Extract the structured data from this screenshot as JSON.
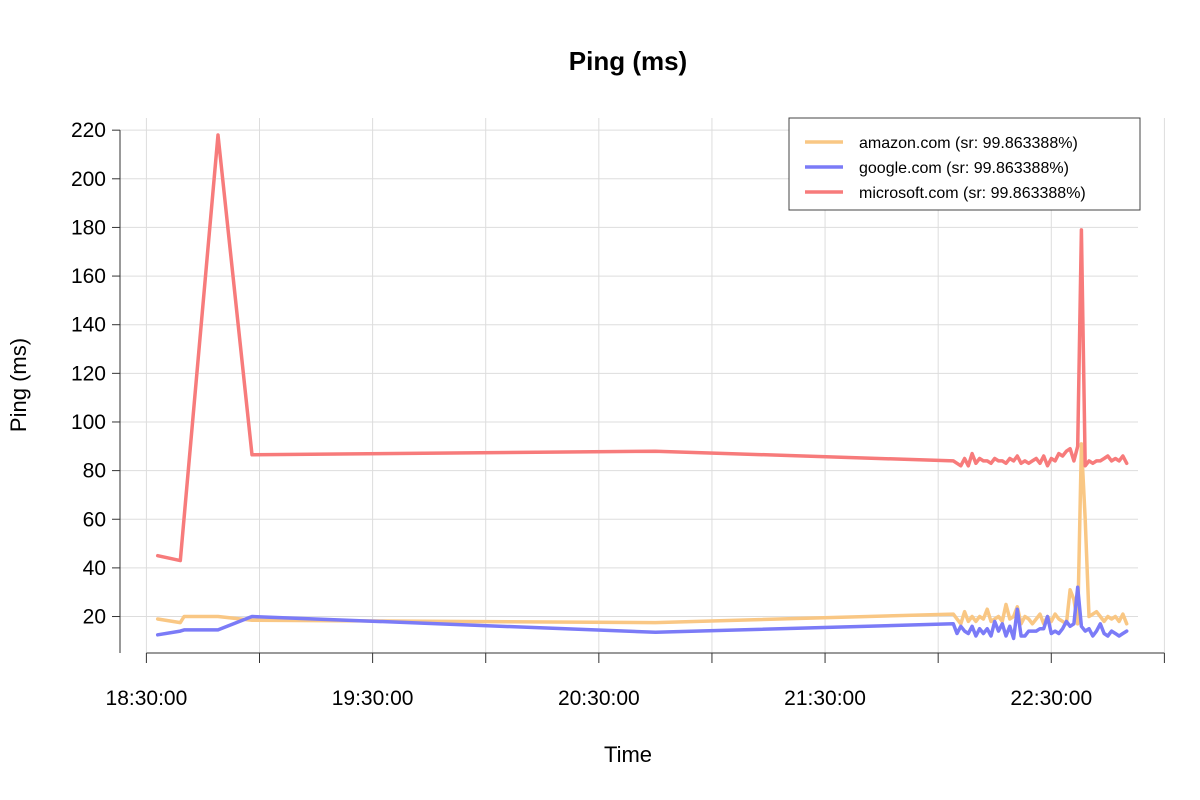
{
  "chart_data": {
    "type": "line",
    "title": "Ping (ms)",
    "xlabel": "Time",
    "ylabel": "Ping (ms)",
    "x_unit": "time of day",
    "xlim": [
      "18:23:00",
      "22:53:00"
    ],
    "ylim": [
      5,
      225
    ],
    "x_ticks": [
      "18:30:00",
      "19:00:00",
      "19:30:00",
      "20:00:00",
      "20:30:00",
      "21:00:00",
      "21:30:00",
      "22:00:00",
      "22:30:00",
      "23:00:00"
    ],
    "x_tick_labels": [
      "18:30:00",
      "",
      "19:30:00",
      "",
      "20:30:00",
      "",
      "21:30:00",
      "",
      "22:30:00",
      ""
    ],
    "y_ticks": [
      20,
      40,
      60,
      80,
      100,
      120,
      140,
      160,
      180,
      200,
      220
    ],
    "grid": true,
    "legend_position": "top-right",
    "series": [
      {
        "name": "amazon.com (sr: 99.863388%)",
        "color": "#f9c784",
        "x": [
          "18:33:00",
          "18:39:00",
          "18:40:00",
          "18:49:00",
          "18:58:00",
          "20:45:00",
          "22:04:00",
          "22:05:00",
          "22:06:00",
          "22:07:00",
          "22:08:00",
          "22:09:00",
          "22:10:00",
          "22:11:00",
          "22:12:00",
          "22:13:00",
          "22:14:00",
          "22:15:00",
          "22:16:00",
          "22:17:00",
          "22:18:00",
          "22:19:00",
          "22:20:00",
          "22:21:00",
          "22:22:00",
          "22:23:00",
          "22:24:00",
          "22:25:00",
          "22:26:00",
          "22:27:00",
          "22:28:00",
          "22:29:00",
          "22:30:00",
          "22:31:00",
          "22:32:00",
          "22:33:00",
          "22:34:00",
          "22:35:00",
          "22:36:00",
          "22:37:00",
          "22:38:00",
          "22:39:00",
          "22:40:00",
          "22:41:00",
          "22:42:00",
          "22:43:00",
          "22:44:00",
          "22:45:00",
          "22:46:00",
          "22:47:00",
          "22:48:00",
          "22:49:00",
          "22:50:00"
        ],
        "y": [
          19,
          17.5,
          20,
          20,
          18.5,
          17.5,
          21,
          19,
          17,
          22,
          18,
          20,
          18,
          20,
          19,
          23,
          18,
          19,
          20,
          18,
          25,
          19,
          20,
          24,
          17,
          20,
          19,
          17,
          19,
          21,
          17,
          20,
          18,
          21,
          19,
          18,
          17,
          31,
          27,
          17,
          91,
          60,
          20,
          21,
          22,
          20,
          18,
          20,
          19,
          20,
          18,
          21,
          17
        ]
      },
      {
        "name": "google.com (sr: 99.863388%)",
        "color": "#7b7bf7",
        "x": [
          "18:33:00",
          "18:39:00",
          "18:40:00",
          "18:49:00",
          "18:58:00",
          "20:45:00",
          "22:04:00",
          "22:05:00",
          "22:06:00",
          "22:07:00",
          "22:08:00",
          "22:09:00",
          "22:10:00",
          "22:11:00",
          "22:12:00",
          "22:13:00",
          "22:14:00",
          "22:15:00",
          "22:16:00",
          "22:17:00",
          "22:18:00",
          "22:19:00",
          "22:20:00",
          "22:21:00",
          "22:22:00",
          "22:23:00",
          "22:24:00",
          "22:25:00",
          "22:26:00",
          "22:27:00",
          "22:28:00",
          "22:29:00",
          "22:30:00",
          "22:31:00",
          "22:32:00",
          "22:33:00",
          "22:34:00",
          "22:35:00",
          "22:36:00",
          "22:37:00",
          "22:38:00",
          "22:39:00",
          "22:40:00",
          "22:41:00",
          "22:42:00",
          "22:43:00",
          "22:44:00",
          "22:45:00",
          "22:46:00",
          "22:47:00",
          "22:48:00",
          "22:49:00",
          "22:50:00"
        ],
        "y": [
          12.5,
          14,
          14.5,
          14.5,
          20,
          13.5,
          17,
          13,
          16,
          14,
          13,
          16,
          12,
          15,
          13,
          15,
          12,
          18,
          14,
          17,
          12,
          16,
          11,
          23,
          12,
          12,
          14,
          14,
          14,
          15,
          15,
          20,
          13,
          14,
          13,
          15,
          18,
          16,
          17,
          32,
          16,
          14,
          15,
          12,
          14,
          17,
          13,
          12,
          14,
          13,
          12,
          13,
          14
        ]
      },
      {
        "name": "microsoft.com (sr: 99.863388%)",
        "color": "#f77b7b",
        "x": [
          "18:33:00",
          "18:39:00",
          "18:49:00",
          "18:58:00",
          "20:45:00",
          "22:04:00",
          "22:05:00",
          "22:06:00",
          "22:07:00",
          "22:08:00",
          "22:09:00",
          "22:10:00",
          "22:11:00",
          "22:12:00",
          "22:13:00",
          "22:14:00",
          "22:15:00",
          "22:16:00",
          "22:17:00",
          "22:18:00",
          "22:19:00",
          "22:20:00",
          "22:21:00",
          "22:22:00",
          "22:23:00",
          "22:24:00",
          "22:25:00",
          "22:26:00",
          "22:27:00",
          "22:28:00",
          "22:29:00",
          "22:30:00",
          "22:31:00",
          "22:32:00",
          "22:33:00",
          "22:34:00",
          "22:35:00",
          "22:36:00",
          "22:37:00",
          "22:38:00",
          "22:39:00",
          "22:40:00",
          "22:41:00",
          "22:42:00",
          "22:43:00",
          "22:44:00",
          "22:45:00",
          "22:46:00",
          "22:47:00",
          "22:48:00",
          "22:49:00",
          "22:50:00"
        ],
        "y": [
          45,
          43,
          218,
          86.5,
          88,
          84,
          83,
          82,
          85,
          82,
          87,
          83,
          85,
          84,
          84,
          83,
          85,
          84,
          84,
          83,
          85,
          84,
          86,
          83,
          84,
          83,
          84,
          85,
          83,
          86,
          82,
          85,
          84,
          87,
          86,
          88,
          89,
          84,
          90,
          179,
          82,
          84,
          83,
          84,
          84,
          85,
          86,
          84,
          85,
          84,
          86,
          83
        ]
      }
    ]
  }
}
